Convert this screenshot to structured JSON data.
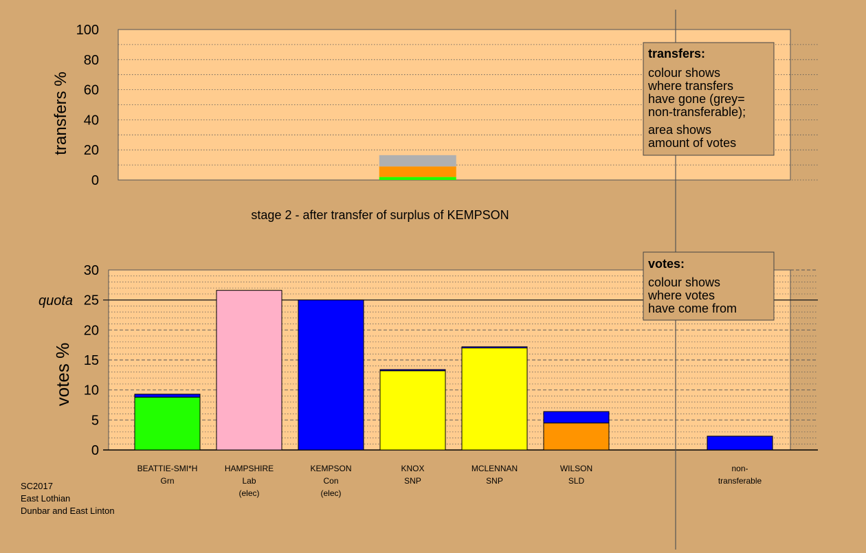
{
  "colors": {
    "page_bg": "#d4a872",
    "plot_bg": "#ffcc8f",
    "Grn": "#22ff00",
    "Lab": "#ffb0c8",
    "Con": "#0000ff",
    "SNP": "#ffff00",
    "SLD": "#ff9400",
    "nontransferable": "#b0b0b0",
    "grid": "#555555",
    "axis": "#000000"
  },
  "top_panel": {
    "ylabel": "transfers %",
    "stage_caption": "stage 2 - after transfer of surplus of KEMPSON",
    "legend": {
      "title": "transfers:",
      "line1": [
        "colour shows",
        "where transfers",
        "have gone (grey=",
        "non-transferable);"
      ],
      "line2": [
        "area shows",
        "amount of votes"
      ]
    }
  },
  "bottom_panel": {
    "ylabel": "votes %",
    "quota_label": "quota",
    "legend": {
      "title": "votes:",
      "lines": [
        "colour shows",
        "where votes",
        "have come from"
      ]
    }
  },
  "footer": {
    "line1": "SC2017",
    "line2": "East Lothian",
    "line3": "Dunbar and East Linton"
  },
  "chart_data": [
    {
      "type": "bar",
      "stacked": true,
      "panel": "transfers",
      "ylabel": "transfers %",
      "ylim": [
        0,
        100
      ],
      "yticks": [
        0,
        20,
        40,
        60,
        80,
        100
      ],
      "bars": [
        {
          "position": 3,
          "of_slots": 8,
          "segments": [
            {
              "party": "Grn",
              "value": 2
            },
            {
              "party": "SLD",
              "value": 7
            },
            {
              "party": "nontransferable",
              "value": 7.5
            }
          ]
        }
      ]
    },
    {
      "type": "bar",
      "stacked": true,
      "panel": "votes",
      "ylabel": "votes %",
      "ylim": [
        0,
        30
      ],
      "yticks": [
        0,
        5,
        10,
        15,
        20,
        25,
        30
      ],
      "quota": 25,
      "categories": [
        {
          "name": "BEATTIE-SMI*H",
          "party": "Grn",
          "status": "",
          "segments": [
            {
              "party": "Grn",
              "value": 8.8
            },
            {
              "party": "Con",
              "value": 0.5
            }
          ]
        },
        {
          "name": "HAMPSHIRE",
          "party": "Lab",
          "status": "(elec)",
          "segments": [
            {
              "party": "Lab",
              "value": 26.6
            }
          ]
        },
        {
          "name": "KEMPSON",
          "party": "Con",
          "status": "(elec)",
          "segments": [
            {
              "party": "Con",
              "value": 25.0
            }
          ]
        },
        {
          "name": "KNOX",
          "party": "SNP",
          "status": "",
          "segments": [
            {
              "party": "SNP",
              "value": 13.2
            },
            {
              "party": "Con",
              "value": 0.2
            }
          ]
        },
        {
          "name": "MCLENNAN",
          "party": "SNP",
          "status": "",
          "segments": [
            {
              "party": "SNP",
              "value": 17.0
            },
            {
              "party": "Con",
              "value": 0.2
            }
          ]
        },
        {
          "name": "WILSON",
          "party": "SLD",
          "status": "",
          "segments": [
            {
              "party": "SLD",
              "value": 4.5
            },
            {
              "party": "Con",
              "value": 1.9
            }
          ]
        },
        {
          "name": "",
          "party": "",
          "status": "",
          "segments": []
        },
        {
          "name": "non-",
          "party": "transferable",
          "status": "",
          "segments": [
            {
              "party": "Con",
              "value": 2.3
            }
          ]
        }
      ]
    }
  ]
}
